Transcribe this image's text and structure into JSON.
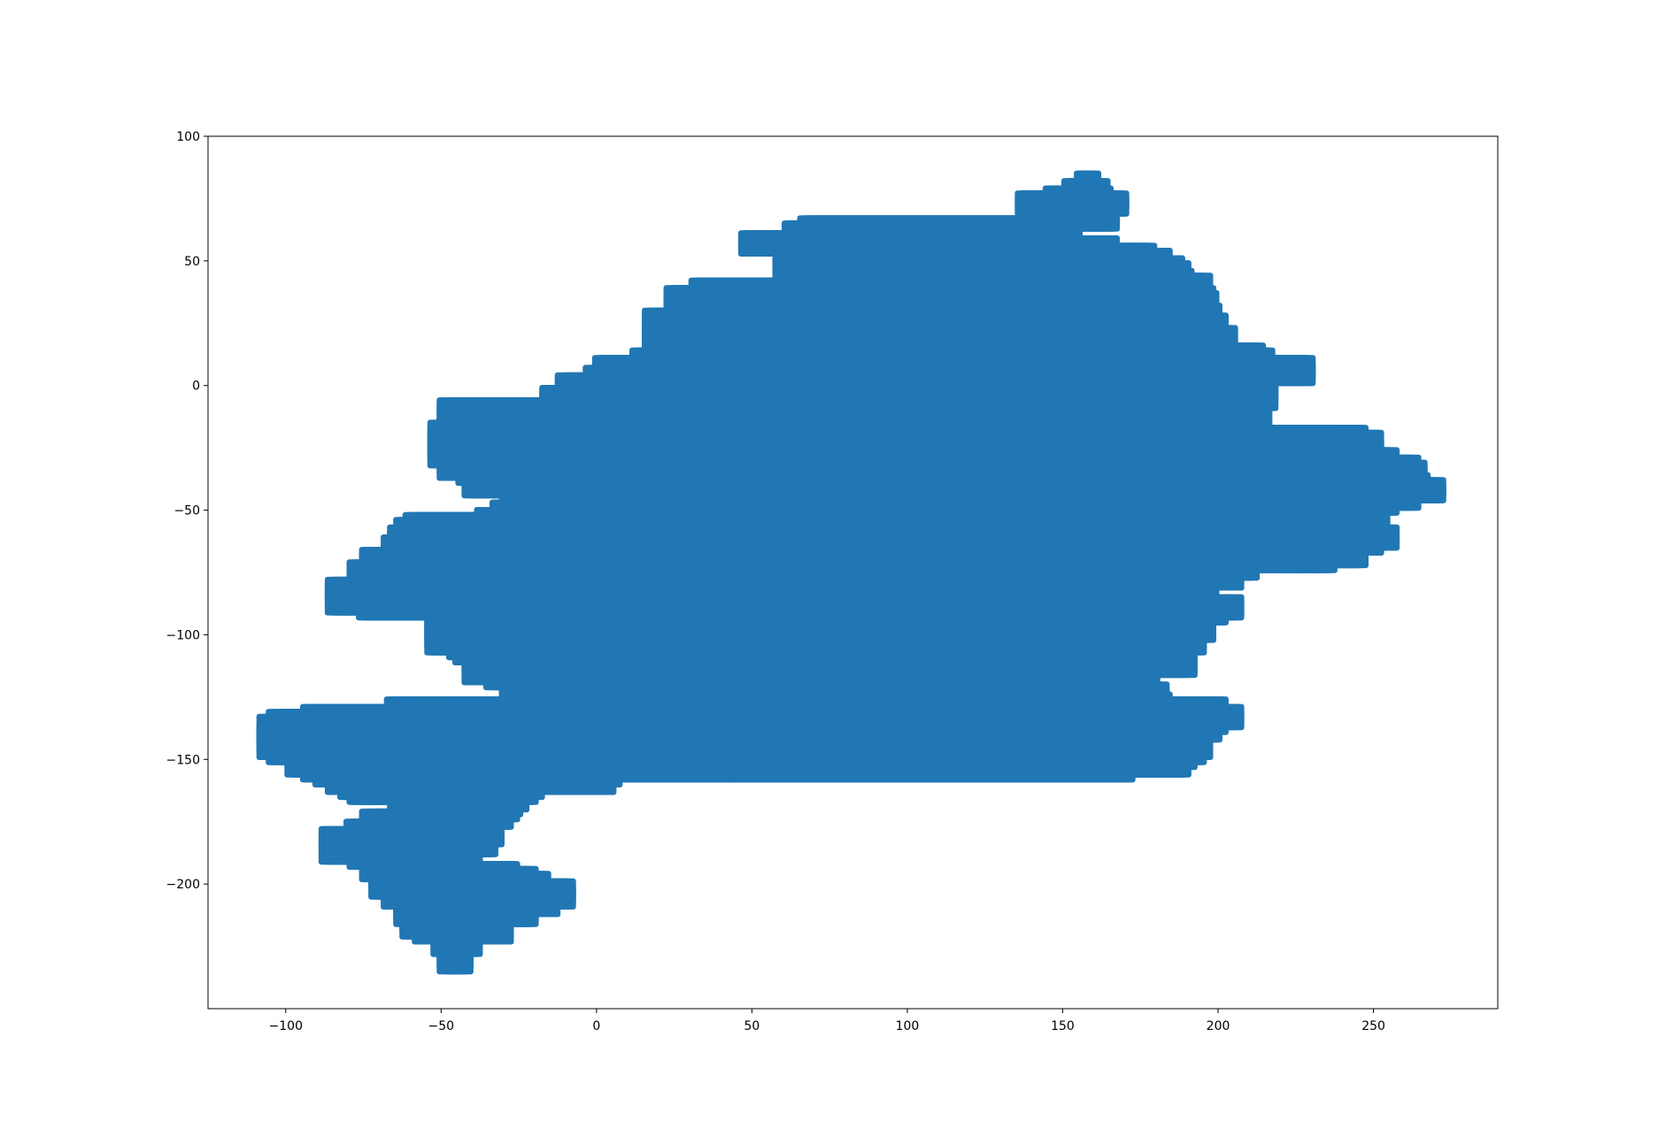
{
  "chart_data": {
    "type": "scatter",
    "title": "",
    "xlabel": "",
    "ylabel": "",
    "xlim": [
      -125,
      290
    ],
    "ylim": [
      -250,
      100
    ],
    "xticks": [
      -100,
      -50,
      0,
      50,
      100,
      150,
      200,
      250
    ],
    "yticks": [
      100,
      50,
      0,
      -50,
      -100,
      -150,
      -200
    ],
    "xtick_labels": [
      "−100",
      "−50",
      "0",
      "50",
      "100",
      "150",
      "200",
      "250"
    ],
    "ytick_labels": [
      "100",
      "50",
      "0",
      "−50",
      "−100",
      "−150",
      "−200"
    ],
    "grid": false,
    "legend": "none",
    "color": "#2177b4",
    "marker": "square",
    "note_on_points": "Dense square-marker scatter tracing a grid walk; points listed as horizontal runs [y, x_start, x_end] at step 1.",
    "runs": [
      [
        82,
        157,
        159
      ],
      [
        79,
        153,
        162
      ],
      [
        76,
        147,
        163
      ],
      [
        74,
        138,
        168
      ],
      [
        72,
        138,
        168
      ],
      [
        69,
        145,
        165
      ],
      [
        66,
        151,
        165
      ],
      [
        64,
        68,
        150
      ],
      [
        62,
        63,
        153
      ],
      [
        60,
        63,
        97
      ],
      [
        58,
        49,
        150
      ],
      [
        56,
        49,
        165
      ],
      [
        53,
        60,
        177
      ],
      [
        51,
        60,
        182
      ],
      [
        48,
        60,
        186
      ],
      [
        46,
        60,
        188
      ],
      [
        43,
        60,
        189
      ],
      [
        41,
        60,
        195
      ],
      [
        39,
        33,
        195
      ],
      [
        36,
        25,
        196
      ],
      [
        34,
        25,
        197
      ],
      [
        32,
        25,
        197
      ],
      [
        29,
        25,
        198
      ],
      [
        27,
        18,
        198
      ],
      [
        25,
        18,
        200
      ],
      [
        22,
        18,
        200
      ],
      [
        20,
        18,
        203
      ],
      [
        18,
        18,
        203
      ],
      [
        15,
        18,
        203
      ],
      [
        13,
        18,
        212
      ],
      [
        11,
        14,
        215
      ],
      [
        8,
        2,
        228
      ],
      [
        6,
        2,
        228
      ],
      [
        4,
        -1,
        228
      ],
      [
        1,
        -10,
        216
      ],
      [
        -1,
        -10,
        216
      ],
      [
        -4,
        -15,
        216
      ],
      [
        -6,
        -15,
        216
      ],
      [
        -9,
        -48,
        214
      ],
      [
        -11,
        -48,
        214
      ],
      [
        -14,
        -48,
        214
      ],
      [
        -16,
        -48,
        214
      ],
      [
        -18,
        -51,
        214
      ],
      [
        -20,
        -51,
        245
      ],
      [
        -22,
        -51,
        250
      ],
      [
        -25,
        -51,
        250
      ],
      [
        -27,
        -51,
        250
      ],
      [
        -29,
        -51,
        255
      ],
      [
        -32,
        -48,
        262
      ],
      [
        -34,
        -48,
        264
      ],
      [
        -36,
        -42,
        264
      ],
      [
        -39,
        -40,
        265
      ],
      [
        -41,
        -40,
        270
      ],
      [
        -43,
        -28,
        270
      ],
      [
        -46,
        -28,
        262
      ],
      [
        -48,
        -28,
        255
      ],
      [
        -50,
        -31,
        250
      ],
      [
        -53,
        -36,
        250
      ],
      [
        -55,
        -59,
        252
      ],
      [
        -57,
        -62,
        252
      ],
      [
        -60,
        -64,
        255
      ],
      [
        -62,
        -64,
        255
      ],
      [
        -64,
        -66,
        250
      ],
      [
        -67,
        -66,
        245
      ],
      [
        -69,
        -73,
        245
      ],
      [
        -71,
        -73,
        235
      ],
      [
        -74,
        -77,
        210
      ],
      [
        -76,
        -77,
        205
      ],
      [
        -78,
        -77,
        205
      ],
      [
        -81,
        -84,
        197
      ],
      [
        -83,
        -84,
        197
      ],
      [
        -85,
        -84,
        190
      ],
      [
        -88,
        -84,
        205
      ],
      [
        -90,
        -74,
        205
      ],
      [
        -92,
        -52,
        200
      ],
      [
        -95,
        -52,
        196
      ],
      [
        -97,
        -52,
        193
      ],
      [
        -99,
        -52,
        196
      ],
      [
        -102,
        -52,
        193
      ],
      [
        -104,
        -52,
        193
      ],
      [
        -106,
        -45,
        188
      ],
      [
        -108,
        -43,
        188
      ],
      [
        -111,
        -40,
        190
      ],
      [
        -113,
        -40,
        190
      ],
      [
        -116,
        -40,
        175
      ],
      [
        -118,
        -33,
        170
      ],
      [
        -120,
        -28,
        178
      ],
      [
        -123,
        -28,
        181
      ],
      [
        -125,
        -23,
        181
      ],
      [
        -127,
        -22,
        182
      ],
      [
        -129,
        -65,
        200
      ],
      [
        -132,
        -92,
        205
      ],
      [
        -134,
        -103,
        205
      ],
      [
        -136,
        -106,
        200
      ],
      [
        -139,
        -106,
        198
      ],
      [
        -141,
        -106,
        195
      ],
      [
        -143,
        -106,
        195
      ],
      [
        -146,
        -106,
        195
      ],
      [
        -148,
        -103,
        193
      ],
      [
        -150,
        -97,
        190
      ],
      [
        -153,
        -97,
        188
      ],
      [
        -155,
        -92,
        170
      ],
      [
        -157,
        -88,
        5
      ],
      [
        -160,
        -84,
        3
      ],
      [
        -162,
        -80,
        -20
      ],
      [
        -164,
        -77,
        -22
      ],
      [
        -167,
        -60,
        -25
      ],
      [
        -169,
        -60,
        -27
      ],
      [
        -171,
        -64,
        -28
      ],
      [
        -174,
        -73,
        -30
      ],
      [
        -176,
        -73,
        -33
      ],
      [
        -178,
        -78,
        -36
      ],
      [
        -181,
        -86,
        -33
      ],
      [
        -183,
        -86,
        -36
      ],
      [
        -185,
        -86,
        -35
      ],
      [
        -188,
        -86,
        -40
      ],
      [
        -190,
        -77,
        -40
      ],
      [
        -192,
        -73,
        -40
      ],
      [
        -195,
        -73,
        -28
      ],
      [
        -197,
        -70,
        -22
      ],
      [
        -199,
        -70,
        -18
      ],
      [
        -202,
        -70,
        -10
      ],
      [
        -204,
        -66,
        -10
      ],
      [
        -206,
        -66,
        -10
      ],
      [
        -209,
        -62,
        -15
      ],
      [
        -211,
        -62,
        -22
      ],
      [
        -213,
        -62,
        -22
      ],
      [
        -216,
        -60,
        -30
      ],
      [
        -218,
        -60,
        -30
      ],
      [
        -220,
        -56,
        -30
      ],
      [
        -223,
        -50,
        -40
      ],
      [
        -225,
        -50,
        -40
      ],
      [
        -227,
        -48,
        -43
      ],
      [
        -230,
        -48,
        -43
      ],
      [
        -232,
        -48,
        -43
      ]
    ]
  }
}
